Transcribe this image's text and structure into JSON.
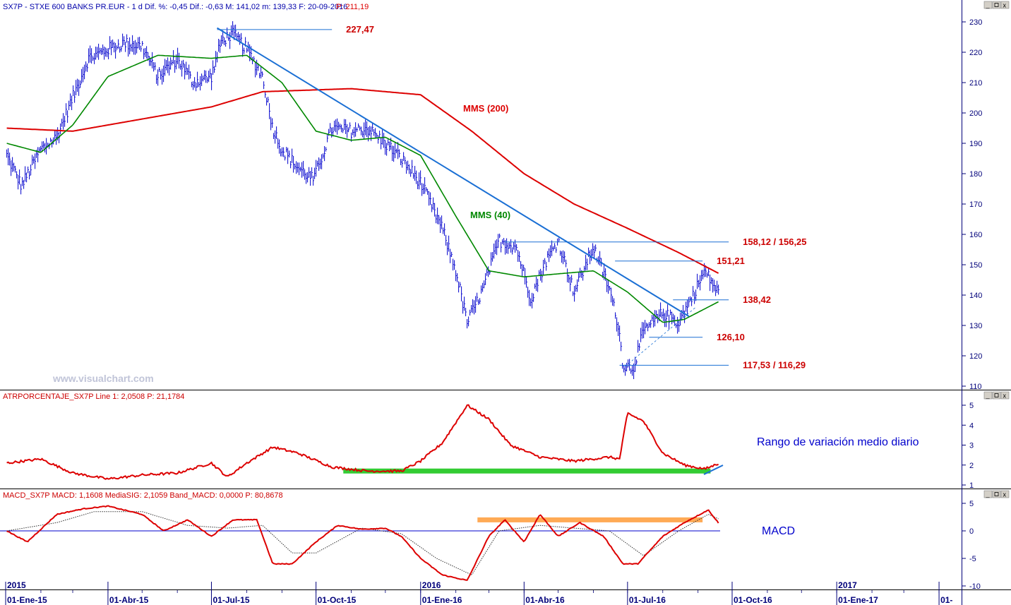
{
  "header": {
    "price_panel": "SX7P - STXE 600 BANKS PR.EUR - 1 d  Dif. %: -0,45  Dif.: -0,63  M: 141,02  m: 139,33  F: 20-09-2016",
    "price_panel_p": "P: 211,19",
    "atr_panel": "ATRPORCENTAJE_SX7P  Line 1: 2,0508  P: 21,1784",
    "macd_panel": "MACD_SX7P  MACD: 1,1608  MediaSIG: 2,1059  Band_MACD: 0,0000  P: 80,8678"
  },
  "watermark": "www.visualchart.com",
  "colors": {
    "price_bars": "#0000cc",
    "mms200": "#dd0000",
    "mms40": "#008800",
    "trendline": "#1a6fd4",
    "levels": "#1a6fd4",
    "atr_line": "#dd0000",
    "atr_band": "#33cc33",
    "macd_line": "#dd0000",
    "macd_signal": "#333333",
    "macd_band": "#ffaa55",
    "axis_text": "#00007a"
  },
  "chart_data": [
    {
      "type": "line",
      "panel": "price",
      "ylim": [
        110,
        232
      ],
      "yticks": [
        110,
        120,
        130,
        140,
        150,
        160,
        170,
        180,
        190,
        200,
        210,
        220,
        230
      ],
      "x_ticks": [
        "01-Ene-15",
        "01-Abr-15",
        "01-Jul-15",
        "01-Oct-15",
        "01-Ene-16",
        "01-Abr-16",
        "01-Jul-16",
        "01-Oct-16",
        "01-Ene-17",
        "01-"
      ],
      "year_markers": [
        "2015",
        "2016",
        "2017"
      ],
      "series": [
        {
          "kind": "close",
          "dates": [
            "2015-01-02",
            "2015-01-15",
            "2015-02-01",
            "2015-02-15",
            "2015-03-01",
            "2015-03-15",
            "2015-04-01",
            "2015-04-15",
            "2015-05-01",
            "2015-05-15",
            "2015-06-01",
            "2015-06-15",
            "2015-07-01",
            "2015-07-10",
            "2015-07-20",
            "2015-08-01",
            "2015-08-15",
            "2015-08-24",
            "2015-09-01",
            "2015-09-15",
            "2015-09-29",
            "2015-10-15",
            "2015-11-01",
            "2015-11-15",
            "2015-12-01",
            "2015-12-15",
            "2016-01-01",
            "2016-01-20",
            "2016-02-01",
            "2016-02-11",
            "2016-02-25",
            "2016-03-10",
            "2016-03-25",
            "2016-04-07",
            "2016-04-20",
            "2016-05-01",
            "2016-05-15",
            "2016-06-01",
            "2016-06-15",
            "2016-06-23",
            "2016-06-27",
            "2016-07-06",
            "2016-07-15",
            "2016-08-01",
            "2016-08-15",
            "2016-08-25",
            "2016-09-07",
            "2016-09-20"
          ],
          "values": [
            186,
            176,
            188,
            192,
            205,
            218,
            221,
            223,
            222,
            212,
            218,
            210,
            212,
            224,
            226,
            221,
            212,
            195,
            188,
            182,
            178,
            195,
            194,
            195,
            190,
            185,
            177,
            162,
            148,
            131,
            142,
            158,
            156,
            139,
            151,
            158,
            141,
            156,
            142,
            130,
            117,
            116,
            128,
            134,
            131,
            138,
            148,
            140
          ]
        },
        {
          "name": "MMS (200)",
          "dates": [
            "2015-01-02",
            "2015-03-01",
            "2015-05-01",
            "2015-07-01",
            "2015-08-15",
            "2015-11-01",
            "2016-01-01",
            "2016-02-15",
            "2016-04-01",
            "2016-05-15",
            "2016-07-01",
            "2016-08-15",
            "2016-09-20"
          ],
          "values": [
            195,
            194,
            198,
            202,
            207,
            208,
            206,
            194,
            180,
            170,
            162,
            154,
            147
          ]
        },
        {
          "name": "MMS (40)",
          "dates": [
            "2015-01-02",
            "2015-02-01",
            "2015-03-01",
            "2015-04-01",
            "2015-05-15",
            "2015-07-01",
            "2015-08-01",
            "2015-09-01",
            "2015-10-01",
            "2015-11-01",
            "2015-12-01",
            "2016-01-01",
            "2016-02-01",
            "2016-03-01",
            "2016-04-01",
            "2016-05-01",
            "2016-06-01",
            "2016-07-01",
            "2016-08-01",
            "2016-08-20",
            "2016-09-20"
          ],
          "values": [
            190,
            187,
            196,
            212,
            219,
            218,
            219,
            210,
            194,
            191,
            192,
            186,
            166,
            148,
            146,
            147,
            148,
            141,
            131,
            132,
            138
          ]
        },
        {
          "name": "trendline",
          "dates": [
            "2015-07-06",
            "2016-08-24"
          ],
          "values": [
            228,
            133
          ]
        }
      ],
      "levels": [
        {
          "label": "227,47",
          "value": 227.47,
          "from": "2015-07-06",
          "to": "2015-10-15"
        },
        {
          "label": "158,12 / 156,25",
          "value": 157.5,
          "from": "2016-03-15",
          "to": "2016-09-28"
        },
        {
          "label": "151,21",
          "value": 151.21,
          "from": "2016-06-20",
          "to": "2016-09-05"
        },
        {
          "label": "138,42",
          "value": 138.42,
          "from": "2016-08-10",
          "to": "2016-09-28"
        },
        {
          "label": "126,10",
          "value": 126.1,
          "from": "2016-07-20",
          "to": "2016-09-05"
        },
        {
          "label": "117,53 / 116,29",
          "value": 116.9,
          "from": "2016-06-24",
          "to": "2016-09-28"
        }
      ],
      "labels": {
        "mms200": "MMS (200)",
        "mms40": "MMS (40)"
      }
    },
    {
      "type": "line",
      "panel": "atr",
      "ylim": [
        0.8,
        5.2
      ],
      "yticks": [
        1,
        2,
        3,
        4,
        5
      ],
      "series": [
        {
          "name": "ATR %",
          "dates": [
            "2015-01-02",
            "2015-02-01",
            "2015-03-01",
            "2015-04-01",
            "2015-05-01",
            "2015-06-01",
            "2015-07-01",
            "2015-07-15",
            "2015-08-01",
            "2015-08-24",
            "2015-09-15",
            "2015-10-15",
            "2015-11-15",
            "2015-12-15",
            "2016-01-01",
            "2016-01-20",
            "2016-02-11",
            "2016-03-01",
            "2016-03-20",
            "2016-04-15",
            "2016-05-15",
            "2016-06-15",
            "2016-06-24",
            "2016-07-01",
            "2016-07-15",
            "2016-08-01",
            "2016-08-20",
            "2016-09-07",
            "2016-09-20"
          ],
          "values": [
            2.1,
            2.3,
            1.6,
            1.3,
            1.5,
            1.6,
            2.1,
            1.4,
            2.1,
            2.9,
            2.6,
            1.9,
            1.7,
            1.7,
            2.2,
            3.1,
            5.0,
            4.3,
            3.0,
            2.4,
            2.2,
            2.4,
            2.3,
            4.6,
            4.2,
            2.6,
            2.0,
            1.8,
            2.1
          ]
        }
      ],
      "bands": [
        {
          "value": 1.7,
          "from": "2015-10-25",
          "to": "2016-09-12"
        }
      ],
      "annotation": "Rango de variación medio diario"
    },
    {
      "type": "line",
      "panel": "macd",
      "ylim": [
        -10.5,
        5.5
      ],
      "yticks": [
        5,
        0,
        -5,
        -10
      ],
      "series": [
        {
          "name": "MACD",
          "dates": [
            "2015-01-02",
            "2015-01-20",
            "2015-02-15",
            "2015-03-10",
            "2015-04-01",
            "2015-05-01",
            "2015-05-20",
            "2015-06-10",
            "2015-07-01",
            "2015-07-20",
            "2015-08-10",
            "2015-08-24",
            "2015-09-10",
            "2015-10-01",
            "2015-10-20",
            "2015-11-10",
            "2015-12-01",
            "2015-12-15",
            "2016-01-01",
            "2016-01-20",
            "2016-02-11",
            "2016-03-01",
            "2016-03-15",
            "2016-04-01",
            "2016-04-15",
            "2016-05-01",
            "2016-05-20",
            "2016-06-10",
            "2016-06-27",
            "2016-07-10",
            "2016-08-01",
            "2016-08-20",
            "2016-09-10",
            "2016-09-20"
          ],
          "values": [
            0,
            -2,
            3,
            4,
            4.5,
            3,
            0,
            2,
            -1,
            2,
            2,
            -6,
            -6,
            -2,
            1,
            0.3,
            0.5,
            -1,
            -5,
            -8,
            -9,
            -1,
            2,
            -2,
            3,
            -1,
            1.5,
            -1,
            -6,
            -6,
            -1,
            1.5,
            3.8,
            1.2
          ]
        },
        {
          "name": "Signal",
          "dates": [
            "2015-01-02",
            "2015-02-15",
            "2015-03-20",
            "2015-05-01",
            "2015-06-10",
            "2015-07-15",
            "2015-08-15",
            "2015-09-10",
            "2015-10-01",
            "2015-11-10",
            "2015-12-15",
            "2016-01-15",
            "2016-02-15",
            "2016-03-10",
            "2016-04-15",
            "2016-05-15",
            "2016-06-15",
            "2016-07-15",
            "2016-08-15",
            "2016-09-10",
            "2016-09-20"
          ],
          "values": [
            0,
            1.5,
            3.5,
            3.5,
            1,
            0.5,
            1,
            -4,
            -4,
            0.5,
            -0.5,
            -5,
            -8,
            0,
            1,
            0.5,
            0,
            -4.5,
            0,
            3,
            2.1
          ]
        }
      ],
      "bands": [
        {
          "value": 2.0,
          "from": "2016-02-20",
          "to": "2016-09-05"
        }
      ],
      "annotation": "MACD"
    }
  ]
}
